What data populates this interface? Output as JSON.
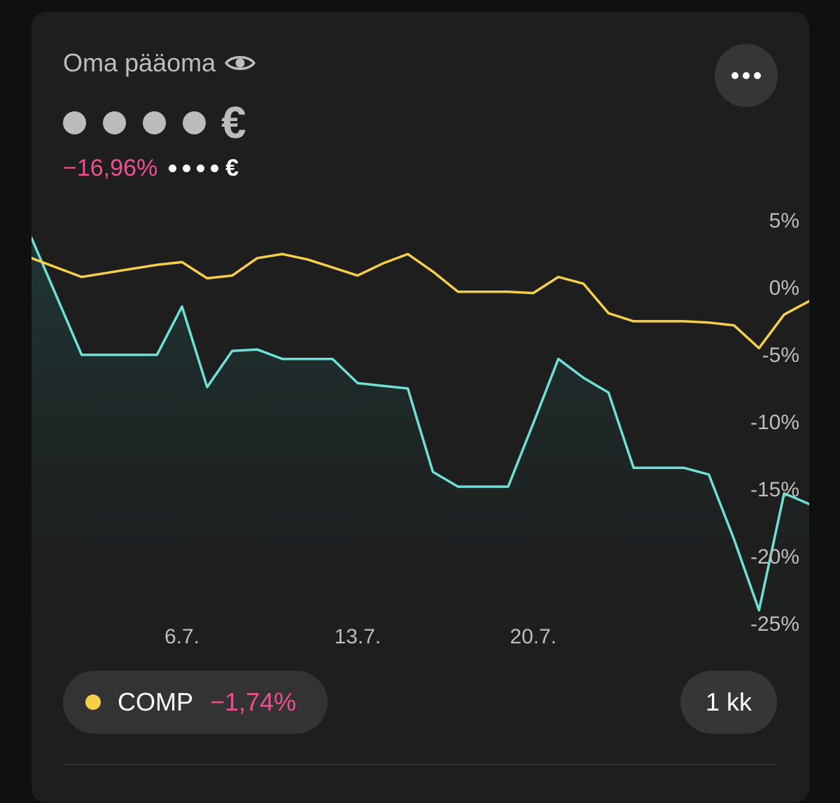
{
  "header": {
    "title": "Oma pääoma",
    "eye_icon": "eye-icon",
    "more_icon": "more-horizontal-icon"
  },
  "balance": {
    "hidden_dots": 4,
    "currency": "€"
  },
  "change": {
    "percent": "−16,96%",
    "hidden_dots": 4,
    "currency": "€"
  },
  "legend": {
    "name": "COMP",
    "change": "−1,74%"
  },
  "period": "1 kk",
  "colors": {
    "portfolio": "#6fe0d5",
    "comparison": "#f5cf4a",
    "negative": "#ec4f92",
    "card_bg": "#1e1e1e"
  },
  "chart_data": {
    "type": "line",
    "y_ticks": [
      "5%",
      "0%",
      "-5%",
      "-10%",
      "-15%",
      "-20%",
      "-25%"
    ],
    "y_tick_values": [
      5,
      0,
      -5,
      -10,
      -15,
      -20,
      -25
    ],
    "ylim": [
      -25,
      5
    ],
    "y_scale": "linear",
    "grid": false,
    "x_ticks": [
      {
        "label": "6.7.",
        "at": 6
      },
      {
        "label": "13.7.",
        "at": 13
      },
      {
        "label": "20.7.",
        "at": 20
      }
    ],
    "xlim": [
      0,
      31
    ],
    "series": [
      {
        "key": "portfolio",
        "color": "#6fe0d5",
        "filled": true,
        "points": [
          [
            0,
            3.6
          ],
          [
            2,
            -5.1
          ],
          [
            3,
            -5.1
          ],
          [
            4,
            -5.1
          ],
          [
            5,
            -5.1
          ],
          [
            6,
            -1.5
          ],
          [
            7,
            -7.5
          ],
          [
            8,
            -4.8
          ],
          [
            9,
            -4.7
          ],
          [
            10,
            -5.4
          ],
          [
            11,
            -5.4
          ],
          [
            12,
            -5.4
          ],
          [
            13,
            -7.2
          ],
          [
            14,
            -7.4
          ],
          [
            15,
            -7.6
          ],
          [
            16,
            -13.8
          ],
          [
            17,
            -14.9
          ],
          [
            18,
            -14.9
          ],
          [
            19,
            -14.9
          ],
          [
            20,
            -10.2
          ],
          [
            21,
            -5.4
          ],
          [
            22,
            -6.8
          ],
          [
            23,
            -7.9
          ],
          [
            24,
            -13.5
          ],
          [
            25,
            -13.5
          ],
          [
            26,
            -13.5
          ],
          [
            27,
            -14
          ],
          [
            28,
            -18.8
          ],
          [
            29,
            -24.1
          ],
          [
            30,
            -15.4
          ],
          [
            31,
            -16.2
          ]
        ]
      },
      {
        "key": "comparison",
        "color": "#f5cf4a",
        "filled": false,
        "points": [
          [
            0,
            2.1
          ],
          [
            2,
            0.7
          ],
          [
            3,
            1
          ],
          [
            4,
            1.3
          ],
          [
            5,
            1.6
          ],
          [
            6,
            1.8
          ],
          [
            7,
            0.6
          ],
          [
            8,
            0.8
          ],
          [
            9,
            2.1
          ],
          [
            10,
            2.4
          ],
          [
            11,
            2
          ],
          [
            12,
            1.4
          ],
          [
            13,
            0.8
          ],
          [
            14,
            1.7
          ],
          [
            15,
            2.4
          ],
          [
            16,
            1.1
          ],
          [
            17,
            -0.4
          ],
          [
            18,
            -0.4
          ],
          [
            19,
            -0.4
          ],
          [
            20,
            -0.5
          ],
          [
            21,
            0.7
          ],
          [
            22,
            0.2
          ],
          [
            23,
            -2
          ],
          [
            24,
            -2.6
          ],
          [
            25,
            -2.6
          ],
          [
            26,
            -2.6
          ],
          [
            27,
            -2.7
          ],
          [
            28,
            -2.9
          ],
          [
            29,
            -4.6
          ],
          [
            30,
            -2.1
          ],
          [
            31,
            -1.1
          ]
        ]
      }
    ]
  }
}
